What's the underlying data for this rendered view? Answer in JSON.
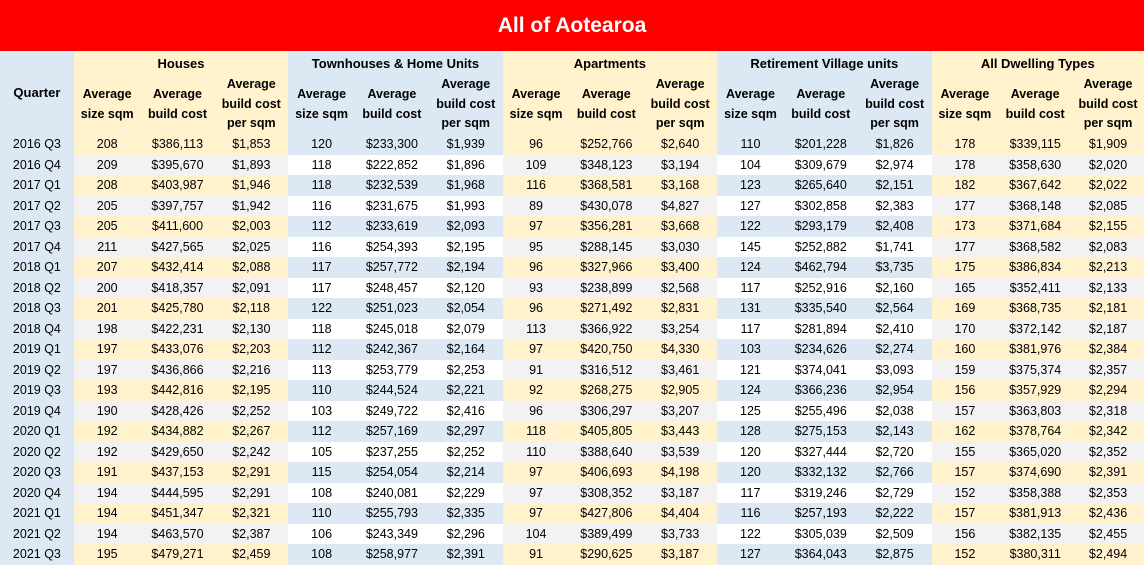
{
  "title": "All of Aotearoa",
  "quarter_header": "Quarter",
  "groups": [
    "Houses",
    "Townhouses & Home Units",
    "Apartments",
    "Retirement Village units",
    "All Dwelling Types"
  ],
  "columns": [
    "Average size sqm",
    "Average build cost",
    "Average build cost per sqm"
  ],
  "rows": [
    {
      "q": "2016 Q3",
      "v": [
        "208",
        "$386,113",
        "$1,853",
        "120",
        "$233,300",
        "$1,939",
        "96",
        "$252,766",
        "$2,640",
        "110",
        "$201,228",
        "$1,826",
        "178",
        "$339,115",
        "$1,909"
      ]
    },
    {
      "q": "2016 Q4",
      "v": [
        "209",
        "$395,670",
        "$1,893",
        "118",
        "$222,852",
        "$1,896",
        "109",
        "$348,123",
        "$3,194",
        "104",
        "$309,679",
        "$2,974",
        "178",
        "$358,630",
        "$2,020"
      ]
    },
    {
      "q": "2017 Q1",
      "v": [
        "208",
        "$403,987",
        "$1,946",
        "118",
        "$232,539",
        "$1,968",
        "116",
        "$368,581",
        "$3,168",
        "123",
        "$265,640",
        "$2,151",
        "182",
        "$367,642",
        "$2,022"
      ]
    },
    {
      "q": "2017 Q2",
      "v": [
        "205",
        "$397,757",
        "$1,942",
        "116",
        "$231,675",
        "$1,993",
        "89",
        "$430,078",
        "$4,827",
        "127",
        "$302,858",
        "$2,383",
        "177",
        "$368,148",
        "$2,085"
      ]
    },
    {
      "q": "2017 Q3",
      "v": [
        "205",
        "$411,600",
        "$2,003",
        "112",
        "$233,619",
        "$2,093",
        "97",
        "$356,281",
        "$3,668",
        "122",
        "$293,179",
        "$2,408",
        "173",
        "$371,684",
        "$2,155"
      ]
    },
    {
      "q": "2017 Q4",
      "v": [
        "211",
        "$427,565",
        "$2,025",
        "116",
        "$254,393",
        "$2,195",
        "95",
        "$288,145",
        "$3,030",
        "145",
        "$252,882",
        "$1,741",
        "177",
        "$368,582",
        "$2,083"
      ]
    },
    {
      "q": "2018 Q1",
      "v": [
        "207",
        "$432,414",
        "$2,088",
        "117",
        "$257,772",
        "$2,194",
        "96",
        "$327,966",
        "$3,400",
        "124",
        "$462,794",
        "$3,735",
        "175",
        "$386,834",
        "$2,213"
      ]
    },
    {
      "q": "2018 Q2",
      "v": [
        "200",
        "$418,357",
        "$2,091",
        "117",
        "$248,457",
        "$2,120",
        "93",
        "$238,899",
        "$2,568",
        "117",
        "$252,916",
        "$2,160",
        "165",
        "$352,411",
        "$2,133"
      ]
    },
    {
      "q": "2018 Q3",
      "v": [
        "201",
        "$425,780",
        "$2,118",
        "122",
        "$251,023",
        "$2,054",
        "96",
        "$271,492",
        "$2,831",
        "131",
        "$335,540",
        "$2,564",
        "169",
        "$368,735",
        "$2,181"
      ]
    },
    {
      "q": "2018 Q4",
      "v": [
        "198",
        "$422,231",
        "$2,130",
        "118",
        "$245,018",
        "$2,079",
        "113",
        "$366,922",
        "$3,254",
        "117",
        "$281,894",
        "$2,410",
        "170",
        "$372,142",
        "$2,187"
      ]
    },
    {
      "q": "2019 Q1",
      "v": [
        "197",
        "$433,076",
        "$2,203",
        "112",
        "$242,367",
        "$2,164",
        "97",
        "$420,750",
        "$4,330",
        "103",
        "$234,626",
        "$2,274",
        "160",
        "$381,976",
        "$2,384"
      ]
    },
    {
      "q": "2019 Q2",
      "v": [
        "197",
        "$436,866",
        "$2,216",
        "113",
        "$253,779",
        "$2,253",
        "91",
        "$316,512",
        "$3,461",
        "121",
        "$374,041",
        "$3,093",
        "159",
        "$375,374",
        "$2,357"
      ]
    },
    {
      "q": "2019 Q3",
      "v": [
        "193",
        "$442,816",
        "$2,195",
        "110",
        "$244,524",
        "$2,221",
        "92",
        "$268,275",
        "$2,905",
        "124",
        "$366,236",
        "$2,954",
        "156",
        "$357,929",
        "$2,294"
      ]
    },
    {
      "q": "2019 Q4",
      "v": [
        "190",
        "$428,426",
        "$2,252",
        "103",
        "$249,722",
        "$2,416",
        "96",
        "$306,297",
        "$3,207",
        "125",
        "$255,496",
        "$2,038",
        "157",
        "$363,803",
        "$2,318"
      ]
    },
    {
      "q": "2020 Q1",
      "v": [
        "192",
        "$434,882",
        "$2,267",
        "112",
        "$257,169",
        "$2,297",
        "118",
        "$405,805",
        "$3,443",
        "128",
        "$275,153",
        "$2,143",
        "162",
        "$378,764",
        "$2,342"
      ]
    },
    {
      "q": "2020 Q2",
      "v": [
        "192",
        "$429,650",
        "$2,242",
        "105",
        "$237,255",
        "$2,252",
        "110",
        "$388,640",
        "$3,539",
        "120",
        "$327,444",
        "$2,720",
        "155",
        "$365,020",
        "$2,352"
      ]
    },
    {
      "q": "2020 Q3",
      "v": [
        "191",
        "$437,153",
        "$2,291",
        "115",
        "$254,054",
        "$2,214",
        "97",
        "$406,693",
        "$4,198",
        "120",
        "$332,132",
        "$2,766",
        "157",
        "$374,690",
        "$2,391"
      ]
    },
    {
      "q": "2020 Q4",
      "v": [
        "194",
        "$444,595",
        "$2,291",
        "108",
        "$240,081",
        "$2,229",
        "97",
        "$308,352",
        "$3,187",
        "117",
        "$319,246",
        "$2,729",
        "152",
        "$358,388",
        "$2,353"
      ]
    },
    {
      "q": "2021 Q1",
      "v": [
        "194",
        "$451,347",
        "$2,321",
        "110",
        "$255,793",
        "$2,335",
        "97",
        "$427,806",
        "$4,404",
        "116",
        "$257,193",
        "$2,222",
        "157",
        "$381,913",
        "$2,436"
      ]
    },
    {
      "q": "2021 Q2",
      "v": [
        "194",
        "$463,570",
        "$2,387",
        "106",
        "$243,349",
        "$2,296",
        "104",
        "$389,499",
        "$3,733",
        "122",
        "$305,039",
        "$2,509",
        "156",
        "$382,135",
        "$2,455"
      ]
    },
    {
      "q": "2021 Q3",
      "v": [
        "195",
        "$479,271",
        "$2,459",
        "108",
        "$258,977",
        "$2,391",
        "91",
        "$290,625",
        "$3,187",
        "127",
        "$364,043",
        "$2,875",
        "152",
        "$380,311",
        "$2,494"
      ]
    }
  ]
}
